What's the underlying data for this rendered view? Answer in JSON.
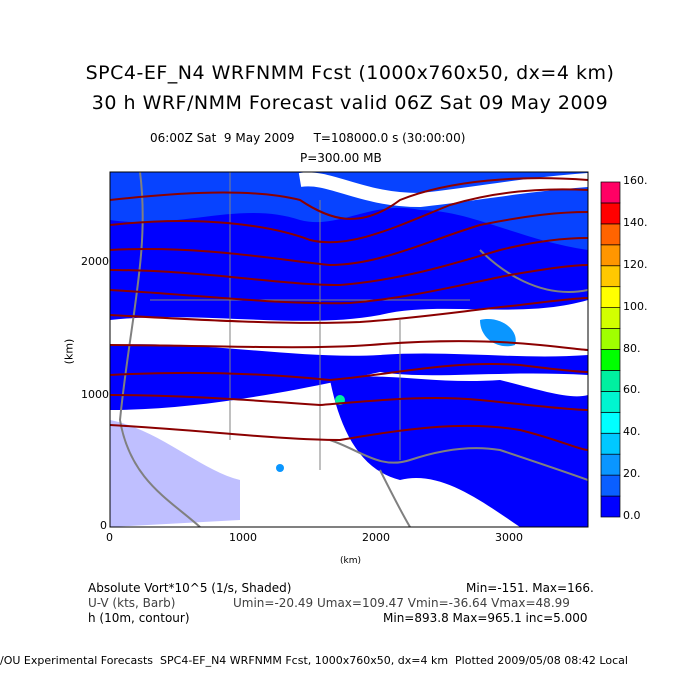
{
  "header": {
    "title1": "SPC4-EF_N4 WRFNMM Fcst (1000x760x50, dx=4 km)",
    "title2": "30 h WRF/NMM Forecast valid 06Z Sat 09 May 2009",
    "time_line": "06:00Z Sat  9 May 2009     T=108000.0 s (30:00:00)",
    "level": "P=300.00 MB"
  },
  "chart_data": {
    "type": "heatmap",
    "title": "SPC4-EF_N4 WRFNMM Fcst (1000x760x50, dx=4 km)",
    "xlabel": "(km)",
    "ylabel": "(km)",
    "xlim": [
      0,
      3600
    ],
    "ylim": [
      0,
      2680
    ],
    "x_ticks": [
      "0",
      "1000",
      "2000",
      "3000"
    ],
    "y_ticks": [
      "0",
      "1000",
      "2000"
    ],
    "colorbar": {
      "ticks": [
        "0.0",
        "20.",
        "40.",
        "60.",
        "80.",
        "100.",
        "120.",
        "140.",
        "160."
      ],
      "colors": [
        "#0000ff",
        "#0a5fff",
        "#0a96ff",
        "#00c8ff",
        "#00ffff",
        "#00f5d0",
        "#00f0a0",
        "#00ff00",
        "#a0ff00",
        "#d2ff00",
        "#ffff00",
        "#ffc800",
        "#ff9600",
        "#ff6400",
        "#ff0000",
        "#ff0064"
      ]
    },
    "fields": [
      {
        "name": "Absolute Vort*10^5 (1/s, Shaded)",
        "stats": "Min=-151. Max=166."
      },
      {
        "name": "U-V (kts, Barb)",
        "stats": "Umin=-20.49 Umax=109.47 Vmin=-36.64 Vmax=48.99"
      },
      {
        "name": "h (10m, contour)",
        "stats": "Min=893.8 Max=965.1 inc=5.000"
      }
    ]
  },
  "footer": "/OU Experimental Forecasts  SPC4-EF_N4 WRFNMM Fcst, 1000x760x50, dx=4 km  Plotted 2009/05/08 08:42 Local"
}
